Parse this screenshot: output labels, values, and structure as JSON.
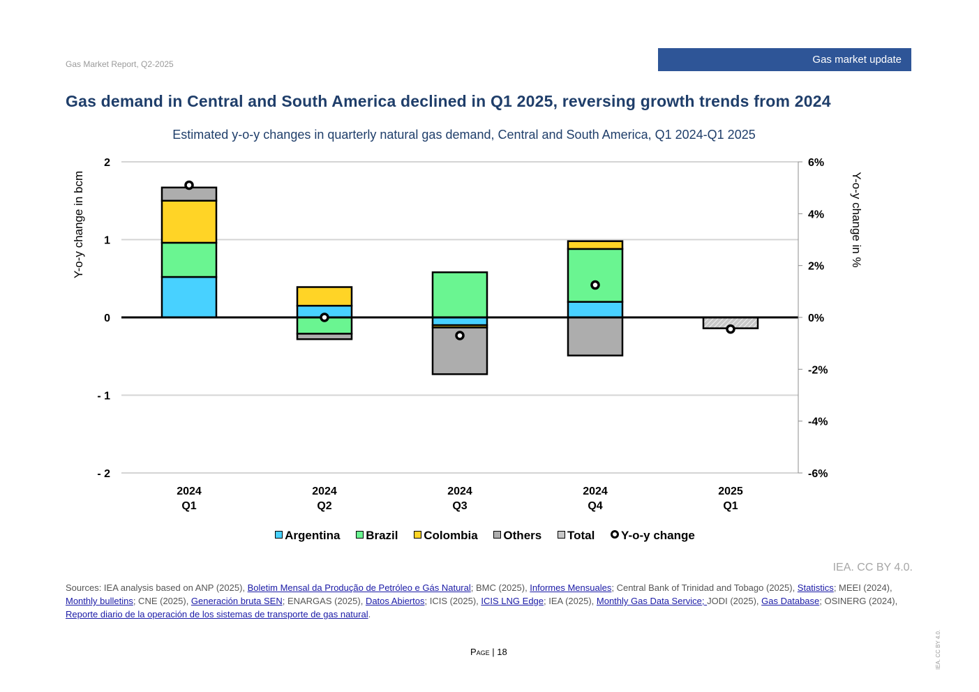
{
  "header": {
    "report_name": "Gas Market Report, Q2-2025",
    "section_tag": "Gas market update",
    "headline": "Gas demand in Central and South America declined in Q1 2025, reversing growth trends from 2024"
  },
  "chart_data": {
    "type": "bar",
    "stacked": true,
    "title": "Estimated y-o-y changes in quarterly natural gas demand, Central and South America, Q1 2024-Q1 2025",
    "categories": [
      [
        "2024",
        "Q1"
      ],
      [
        "2024",
        "Q2"
      ],
      [
        "2024",
        "Q3"
      ],
      [
        "2024",
        "Q4"
      ],
      [
        "2025",
        "Q1"
      ]
    ],
    "ylabel": "Y-o-y change in bcm",
    "ylabel_right": "Y-o-y change in %",
    "ylim": [
      -2,
      2
    ],
    "yticks": [
      2,
      1,
      0,
      -1,
      -2
    ],
    "ytick_labels": [
      "2",
      "1",
      "0",
      "- 1",
      "- 2"
    ],
    "ylim_right": [
      -6,
      6
    ],
    "yticks_right": [
      6,
      4,
      2,
      0,
      -2,
      -4,
      -6
    ],
    "ytick_labels_right": [
      "6%",
      "4%",
      "2%",
      "0%",
      "-2%",
      "-4%",
      "-6%"
    ],
    "grid": true,
    "legend_position": "bottom",
    "series": [
      {
        "name": "Argentina",
        "color": "#48d1ff",
        "values": [
          0.52,
          0.15,
          -0.1,
          0.2,
          null
        ]
      },
      {
        "name": "Brazil",
        "color": "#6af591",
        "values": [
          0.44,
          -0.21,
          0.58,
          0.68,
          null
        ]
      },
      {
        "name": "Colombia",
        "color": "#ffd426",
        "values": [
          0.54,
          0.24,
          -0.03,
          0.1,
          null
        ]
      },
      {
        "name": "Others",
        "color": "#adadad",
        "values": [
          0.17,
          -0.07,
          -0.6,
          -0.49,
          null
        ]
      },
      {
        "name": "Total",
        "color": "#c8c8c8",
        "pattern": "hatched",
        "values": [
          null,
          null,
          null,
          null,
          -0.14
        ]
      }
    ],
    "line_series": {
      "name": "Y-o-y change",
      "axis": "right",
      "unit": "%",
      "values": [
        5.1,
        0.0,
        -0.7,
        1.25,
        -0.45
      ]
    }
  },
  "legend": [
    "Argentina",
    "Brazil",
    "Colombia",
    "Others",
    "Total",
    "Y-o-y change"
  ],
  "credit": "IEA. CC BY 4.0.",
  "sources": {
    "parts": [
      {
        "t": "Sources: IEA analysis based on ANP (2025), "
      },
      {
        "t": "Boletim Mensal da Produção de Petróleo e Gás Natural",
        "link": true
      },
      {
        "t": "; BMC (2025), "
      },
      {
        "t": "Informes Mensuales",
        "link": true
      },
      {
        "t": "; Central Bank of Trinidad and Tobago (2025), "
      },
      {
        "t": "Statistics",
        "link": true
      },
      {
        "t": "; MEEI (2024), "
      },
      {
        "t": "Monthly bulletins",
        "link": true
      },
      {
        "t": "; CNE (2025), "
      },
      {
        "t": "Generación bruta SEN",
        "link": true
      },
      {
        "t": "; ENARGAS (2025), "
      },
      {
        "t": "Datos Abiertos",
        "link": true
      },
      {
        "t": "; ICIS (2025), "
      },
      {
        "t": "ICIS LNG Edge",
        "link": true
      },
      {
        "t": "; IEA (2025), "
      },
      {
        "t": "Monthly Gas Data Service; ",
        "link": true
      },
      {
        "t": "JODI (2025), "
      },
      {
        "t": "Gas Database",
        "link": true
      },
      {
        "t": "; OSINERG (2024), "
      },
      {
        "t": "Reporte diario de la operación de los sistemas de transporte de gas natural",
        "link": true
      },
      {
        "t": "."
      }
    ]
  },
  "footer": {
    "page_label": "Page",
    "page_number": "18",
    "side_credit": "IEA. CC BY 4.0."
  }
}
